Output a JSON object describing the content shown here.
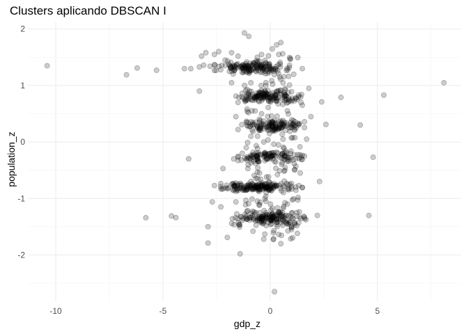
{
  "chart_data": {
    "type": "scatter",
    "title": "Clusters aplicando DBSCAN I",
    "xlabel": "gdp_z",
    "ylabel": "population_z",
    "xlim": [
      -11.3,
      8.9
    ],
    "ylim": [
      -2.82,
      2.12
    ],
    "x_ticks": [
      -10,
      -5,
      0,
      5
    ],
    "x_tick_labels": [
      "-10",
      "-5",
      "0",
      "5"
    ],
    "y_ticks": [
      -2,
      -1,
      0,
      1,
      2
    ],
    "y_tick_labels": [
      "-2",
      "-1",
      "0",
      "1",
      "2"
    ],
    "grid": true,
    "legend": "none",
    "point_fill": "#000000",
    "point_alpha": 0.2,
    "points": [
      [
        -10.4,
        1.35
      ],
      [
        -6.7,
        1.19
      ],
      [
        -6.2,
        1.31
      ],
      [
        -5.3,
        1.27
      ],
      [
        -4.0,
        1.3
      ],
      [
        -3.7,
        1.3
      ],
      [
        -3.3,
        1.33
      ],
      [
        -3.1,
        1.36
      ],
      [
        -2.8,
        1.34
      ],
      [
        -3.2,
        1.52
      ],
      [
        -3.0,
        1.58
      ],
      [
        -2.6,
        1.55
      ],
      [
        -2.4,
        1.6
      ],
      [
        -2.1,
        1.45
      ],
      [
        -1.8,
        1.58
      ],
      [
        -1.5,
        1.52
      ],
      [
        -1.2,
        1.93
      ],
      [
        -1.0,
        1.87
      ],
      [
        0.3,
        1.72
      ],
      [
        0.5,
        1.76
      ],
      [
        -0.6,
        1.5
      ],
      [
        0.1,
        1.65
      ],
      [
        -3.3,
        0.9
      ],
      [
        -1.8,
        1.05
      ],
      [
        0.9,
        1.01
      ],
      [
        2.4,
        0.71
      ],
      [
        3.3,
        0.79
      ],
      [
        5.3,
        0.83
      ],
      [
        8.1,
        1.05
      ],
      [
        2.6,
        0.31
      ],
      [
        4.2,
        0.3
      ],
      [
        4.8,
        -0.27
      ],
      [
        2.3,
        -0.7
      ],
      [
        -3.8,
        -0.3
      ],
      [
        -2.2,
        -0.47
      ],
      [
        -2.6,
        -0.77
      ],
      [
        -2.3,
        -0.83
      ],
      [
        -2.7,
        -1.06
      ],
      [
        -2.3,
        -1.15
      ],
      [
        -1.6,
        -1.06
      ],
      [
        -5.8,
        -1.34
      ],
      [
        -4.6,
        -1.31
      ],
      [
        -4.4,
        -1.34
      ],
      [
        -2.9,
        -1.5
      ],
      [
        -2.9,
        -1.79
      ],
      [
        -2.0,
        -1.69
      ],
      [
        -1.4,
        -1.98
      ],
      [
        4.6,
        -1.3
      ],
      [
        0.2,
        -2.65
      ],
      [
        -1.1,
        -1.37
      ],
      [
        -0.3,
        -1.72
      ],
      [
        0.5,
        -1.8
      ],
      [
        1.0,
        -1.55
      ],
      [
        -0.8,
        -1.58
      ],
      [
        -0.5,
        -1.12
      ],
      [
        -0.2,
        -1.05
      ],
      [
        0.8,
        -1.1
      ],
      [
        1.6,
        -1.33
      ],
      [
        2.2,
        -1.3
      ],
      [
        1.3,
        -0.98
      ],
      [
        -1.7,
        -0.3
      ],
      [
        -1.3,
        -0.2
      ],
      [
        -0.9,
        0.1
      ],
      [
        -0.7,
        0.55
      ],
      [
        -1.5,
        0.7
      ],
      [
        -1.6,
        0.45
      ],
      [
        1.5,
        0.65
      ],
      [
        1.8,
        0.95
      ],
      [
        1.9,
        0.45
      ],
      [
        1.7,
        0.05
      ],
      [
        1.6,
        -0.25
      ],
      [
        1.4,
        -0.55
      ],
      [
        -1.9,
        1.25
      ],
      [
        -2.3,
        1.28
      ],
      [
        -0.9,
        1.05
      ],
      [
        1.1,
        1.2
      ],
      [
        1.5,
        1.3
      ],
      [
        -0.5,
        -0.55
      ],
      [
        0.7,
        -0.45
      ],
      [
        -0.3,
        0.0
      ],
      [
        0.6,
        0.05
      ],
      [
        -0.4,
        0.5
      ],
      [
        0.8,
        0.55
      ],
      [
        -0.2,
        1.0
      ],
      [
        0.6,
        1.05
      ],
      [
        -0.4,
        1.55
      ],
      [
        0.4,
        1.55
      ]
    ],
    "clusters": [
      {
        "y_center": 1.32,
        "x_min": -2.6,
        "x_max": 0.9,
        "n": 150,
        "jitter_y": 0.05
      },
      {
        "y_center": 0.8,
        "x_min": -1.6,
        "x_max": 1.5,
        "n": 140,
        "jitter_y": 0.05
      },
      {
        "y_center": 0.28,
        "x_min": -1.5,
        "x_max": 1.6,
        "n": 120,
        "jitter_y": 0.05
      },
      {
        "y_center": -0.26,
        "x_min": -1.5,
        "x_max": 1.5,
        "n": 110,
        "jitter_y": 0.05
      },
      {
        "y_center": -0.8,
        "x_min": -2.5,
        "x_max": 1.5,
        "n": 160,
        "jitter_y": 0.04
      },
      {
        "y_center": -1.35,
        "x_min": -1.8,
        "x_max": 1.8,
        "n": 150,
        "jitter_y": 0.06
      }
    ]
  }
}
